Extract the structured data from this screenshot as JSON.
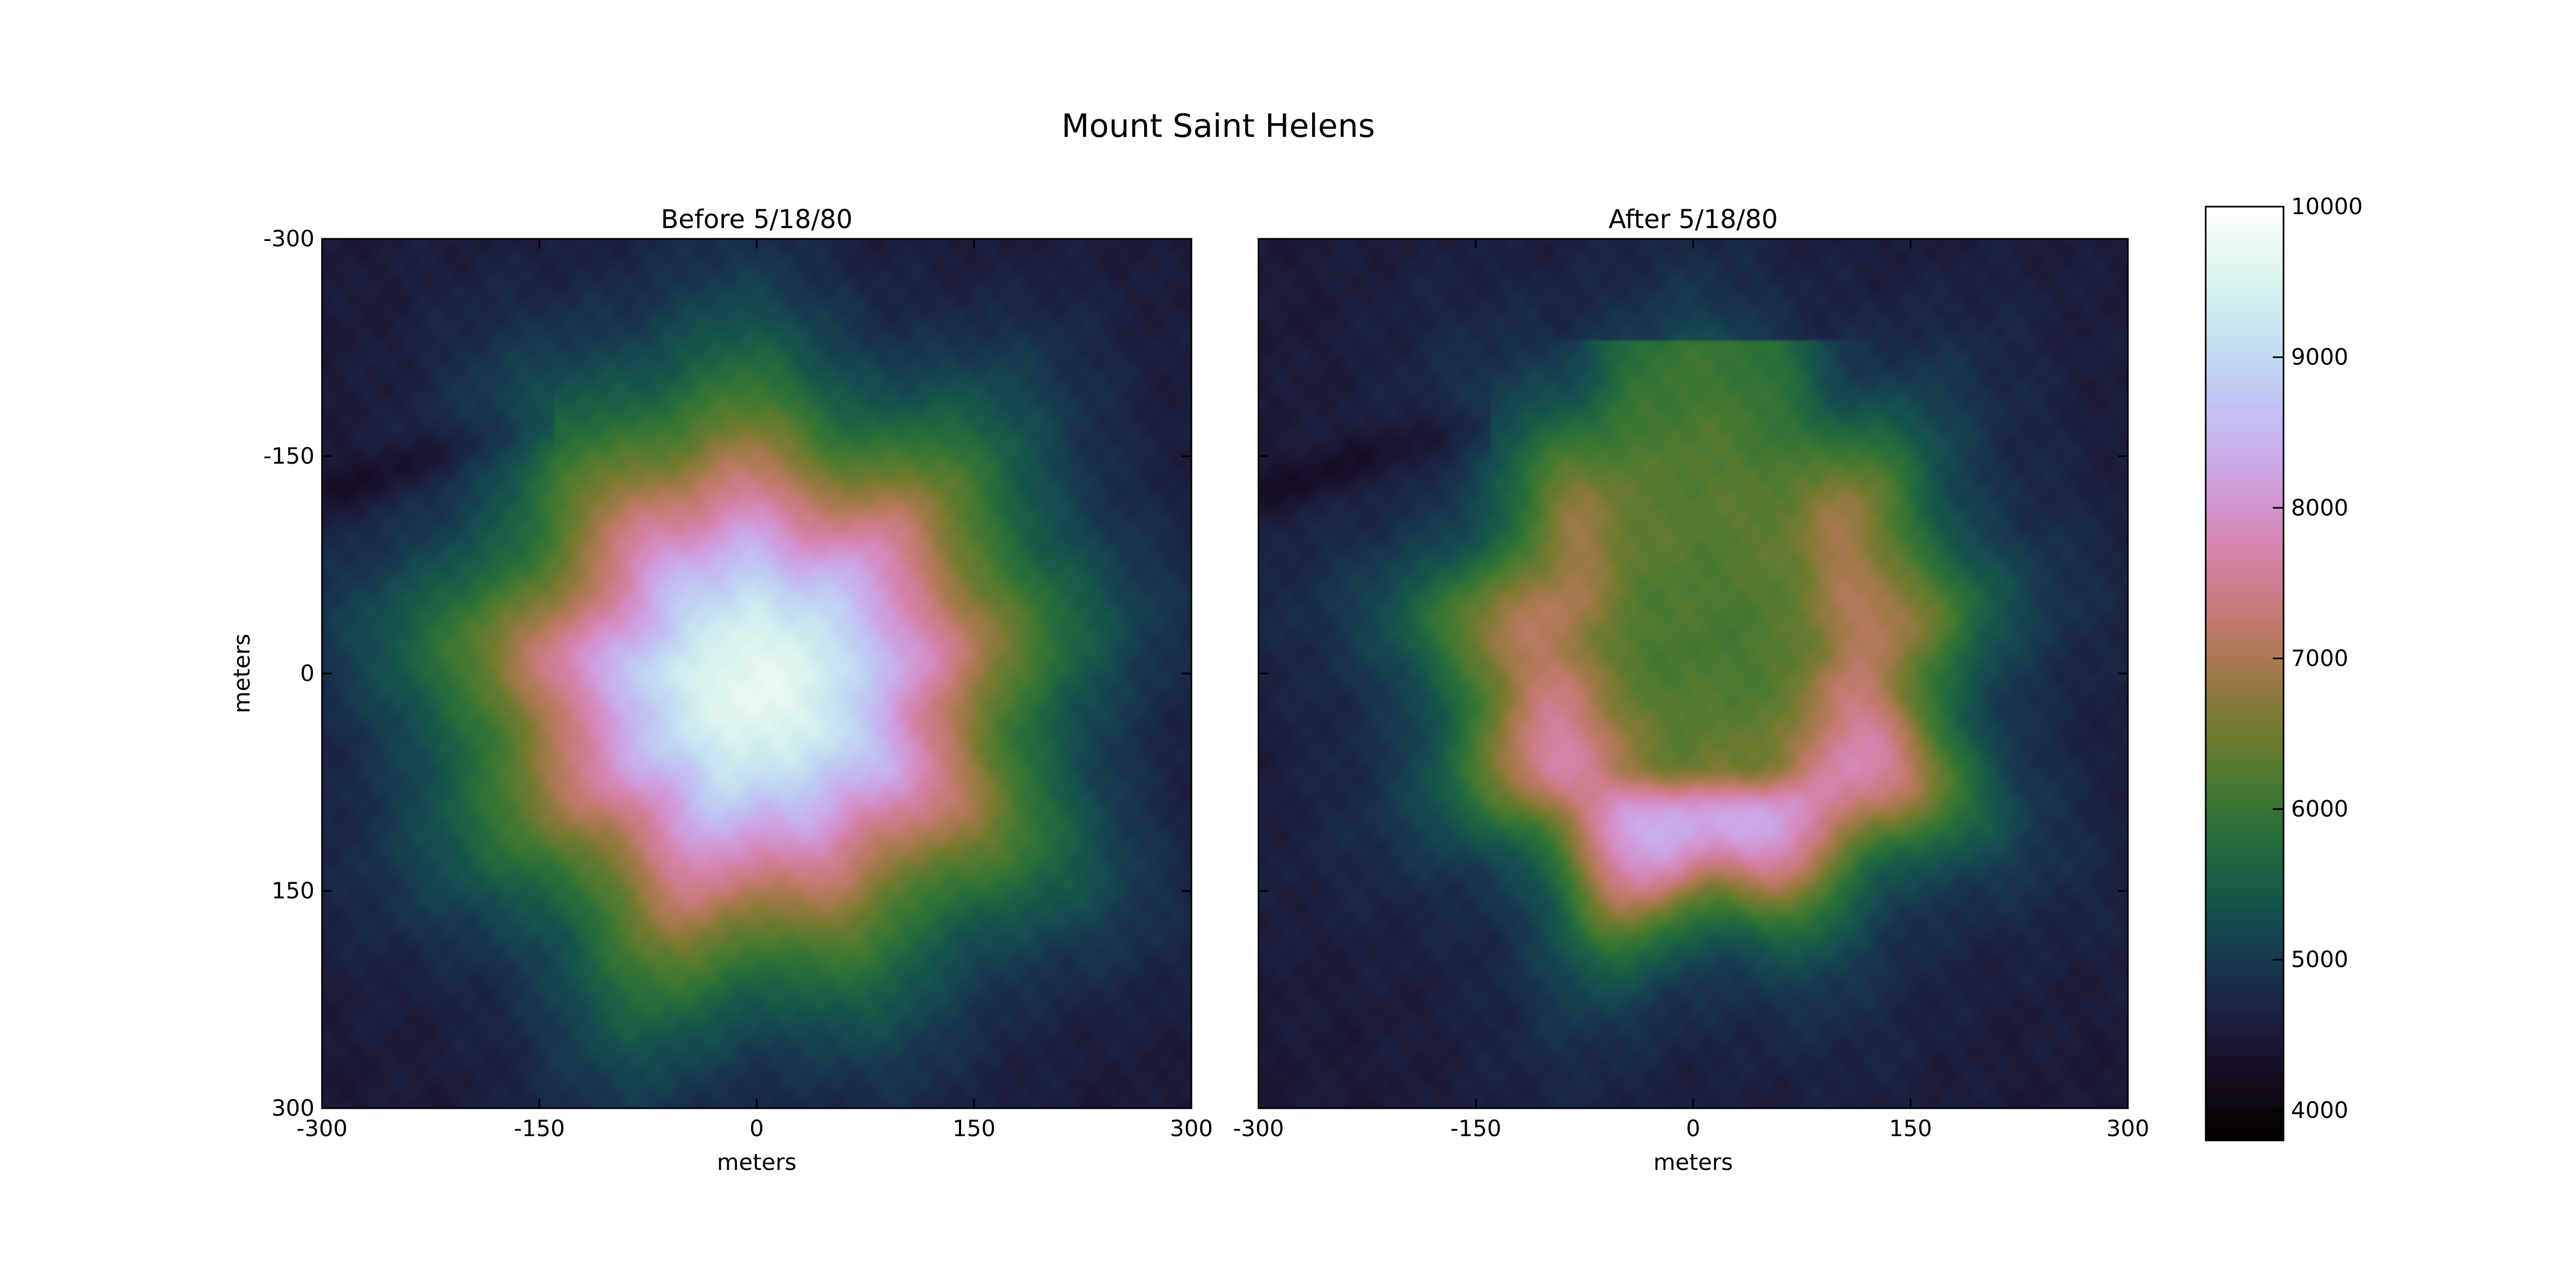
{
  "figure": {
    "title": "Mount Saint Helens"
  },
  "chart_data": [
    {
      "type": "heatmap",
      "title": "Before 5/18/80",
      "xlabel": "meters",
      "ylabel": "meters",
      "xlim": [
        -300,
        300
      ],
      "ylim": [
        300,
        -300
      ],
      "xticks": [
        -300,
        -150,
        0,
        150,
        300
      ],
      "yticks": [
        -300,
        -150,
        0,
        150,
        300
      ],
      "colormap": "cubehelix",
      "value_range": [
        3800,
        10000
      ],
      "features": {
        "peak": {
          "x": 0,
          "y": 10,
          "elevation": 9700
        },
        "base_elevation": 4500,
        "ridge_valley_northwest": true
      }
    },
    {
      "type": "heatmap",
      "title": "After 5/18/80",
      "xlabel": "meters",
      "xlim": [
        -300,
        300
      ],
      "ylim": [
        300,
        -300
      ],
      "xticks": [
        -300,
        -150,
        0,
        150,
        300
      ],
      "colormap": "cubehelix",
      "value_range": [
        3800,
        10000
      ],
      "features": {
        "crater_rim_max_elevation": 8600,
        "crater_floor_elevation": 6300,
        "crater_open_to": "north",
        "base_elevation": 4500
      }
    }
  ],
  "colorbar": {
    "ticks": [
      4000,
      5000,
      6000,
      7000,
      8000,
      9000,
      10000
    ],
    "range": [
      3800,
      10000
    ]
  }
}
